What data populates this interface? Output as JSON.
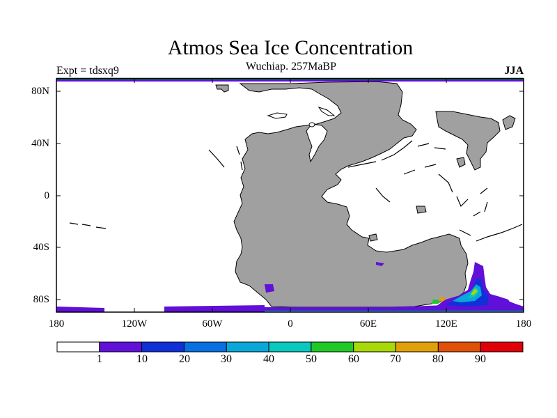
{
  "header": {
    "title": "Atmos Sea Ice Concentration",
    "subtitle": "Wuchiap. 257MaBP",
    "experiment": "Expt = tdsxq9",
    "season": "JJA"
  },
  "map": {
    "projection": "cylindrical equidistant",
    "lat_labels": [
      "80N",
      "40N",
      "0",
      "40S",
      "80S"
    ],
    "lon_labels": [
      "180",
      "120W",
      "60W",
      "0",
      "60E",
      "120E",
      "180"
    ],
    "land_color": "#a0a0a0",
    "ocean_color": "#ffffff"
  },
  "colorbar": {
    "labels": [
      "1",
      "10",
      "20",
      "30",
      "40",
      "50",
      "60",
      "70",
      "80",
      "90"
    ],
    "colors": [
      "#ffffff",
      "#6010d8",
      "#1030d8",
      "#0870e0",
      "#08a8d8",
      "#08c8c0",
      "#20c828",
      "#a8d808",
      "#e0a008",
      "#e05008",
      "#e00008"
    ]
  }
}
